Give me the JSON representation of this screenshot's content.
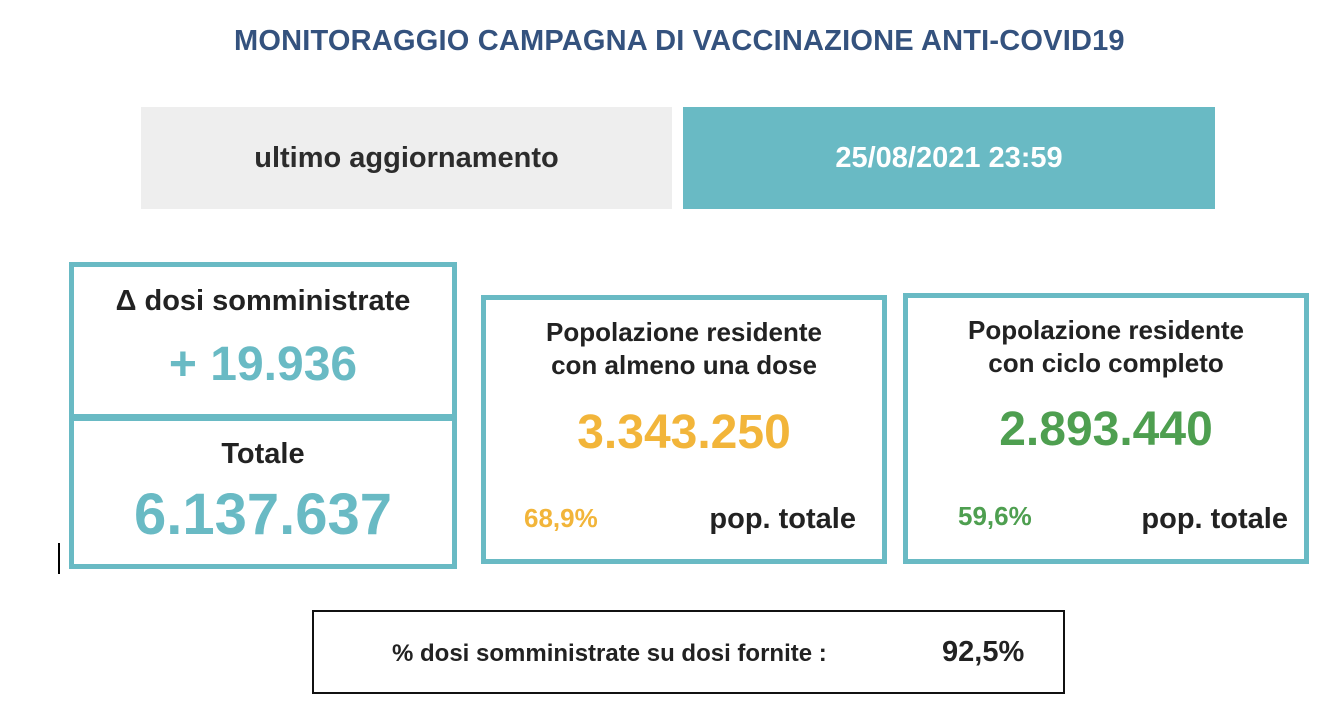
{
  "title": "MONITORAGGIO CAMPAGNA DI VACCINAZIONE ANTI-COVID19",
  "update": {
    "label": "ultimo aggiornamento",
    "value": "25/08/2021 23:59"
  },
  "doses": {
    "delta_label": "Δ dosi somministrate",
    "delta_value": "+ 19.936",
    "total_label": "Totale",
    "total_value": "6.137.637"
  },
  "one_dose": {
    "label": "Popolazione residente con almeno una dose",
    "value": "3.343.250",
    "percent": "68,9%",
    "percent_label": "pop. totale"
  },
  "full_cycle": {
    "label": "Popolazione residente con ciclo completo",
    "value": "2.893.440",
    "percent": "59,6%",
    "percent_label": "pop. totale"
  },
  "ratio": {
    "label": "% dosi somministrate su dosi fornite :",
    "value": "92,5%"
  },
  "colors": {
    "title": "#34527e",
    "accent": "#69bac4",
    "one_dose": "#f2b53a",
    "full_cycle": "#4e9f50"
  }
}
